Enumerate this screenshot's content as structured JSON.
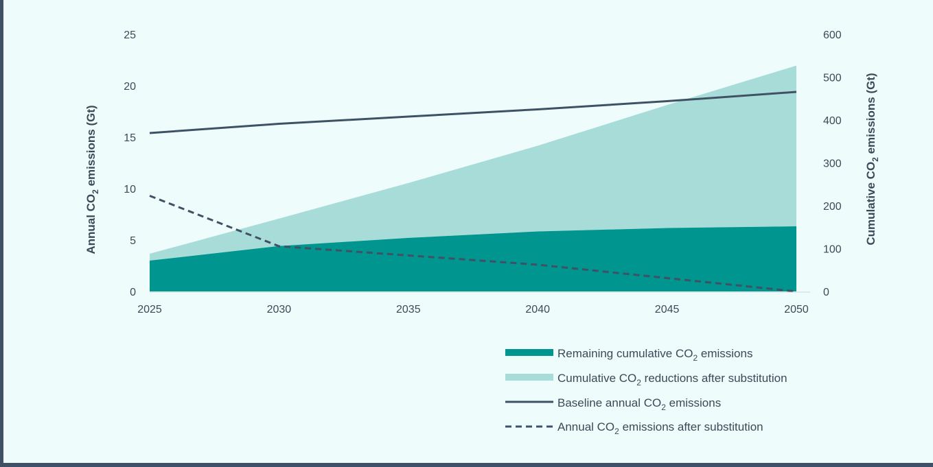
{
  "colors": {
    "remaining": "#00958e",
    "reductions": "#a8dcd9",
    "baseline": "#3f5164",
    "after": "#3f5164",
    "text": "#3b4a58"
  },
  "chart_data": {
    "type": "area",
    "x": [
      2025,
      2030,
      2035,
      2040,
      2045,
      2050
    ],
    "xlim": [
      2025,
      2050
    ],
    "y_left": {
      "label_pre": "Annual CO",
      "label_sub": "2",
      "label_post": " emissions (Gt)",
      "ylim": [
        0,
        25
      ],
      "ticks": [
        0,
        5,
        10,
        15,
        20,
        25
      ]
    },
    "y_right": {
      "label_pre": "Cumulative CO",
      "label_sub": "2",
      "label_post": " emissions (Gt)",
      "ylim": [
        0,
        600
      ],
      "ticks": [
        0,
        100,
        200,
        300,
        400,
        500,
        600
      ]
    },
    "series": [
      {
        "key": "remaining",
        "name_pre": "Remaining cumulative CO",
        "name_sub": "2",
        "name_post": " emissions",
        "axis": "right",
        "kind": "area",
        "values": [
          72,
          106,
          125,
          140,
          148,
          152
        ]
      },
      {
        "key": "reductions",
        "name_pre": "Cumulative CO",
        "name_sub": "2",
        "name_post": " reductions after substitution",
        "axis": "right",
        "kind": "stacked-area",
        "values": [
          16,
          64,
          128,
          200,
          287,
          375
        ]
      },
      {
        "key": "baseline",
        "name_pre": "Baseline annual CO",
        "name_sub": "2",
        "name_post": " emissions",
        "axis": "left",
        "kind": "line",
        "values": [
          15.4,
          16.3,
          17.0,
          17.7,
          18.5,
          19.4
        ]
      },
      {
        "key": "after",
        "name_pre": "Annual CO",
        "name_sub": "2",
        "name_post": " emissions after substitution",
        "axis": "left",
        "kind": "dashed-line",
        "values": [
          9.3,
          4.4,
          3.5,
          2.6,
          1.3,
          0
        ]
      }
    ],
    "grid": false,
    "legend_position": "bottom-right"
  }
}
